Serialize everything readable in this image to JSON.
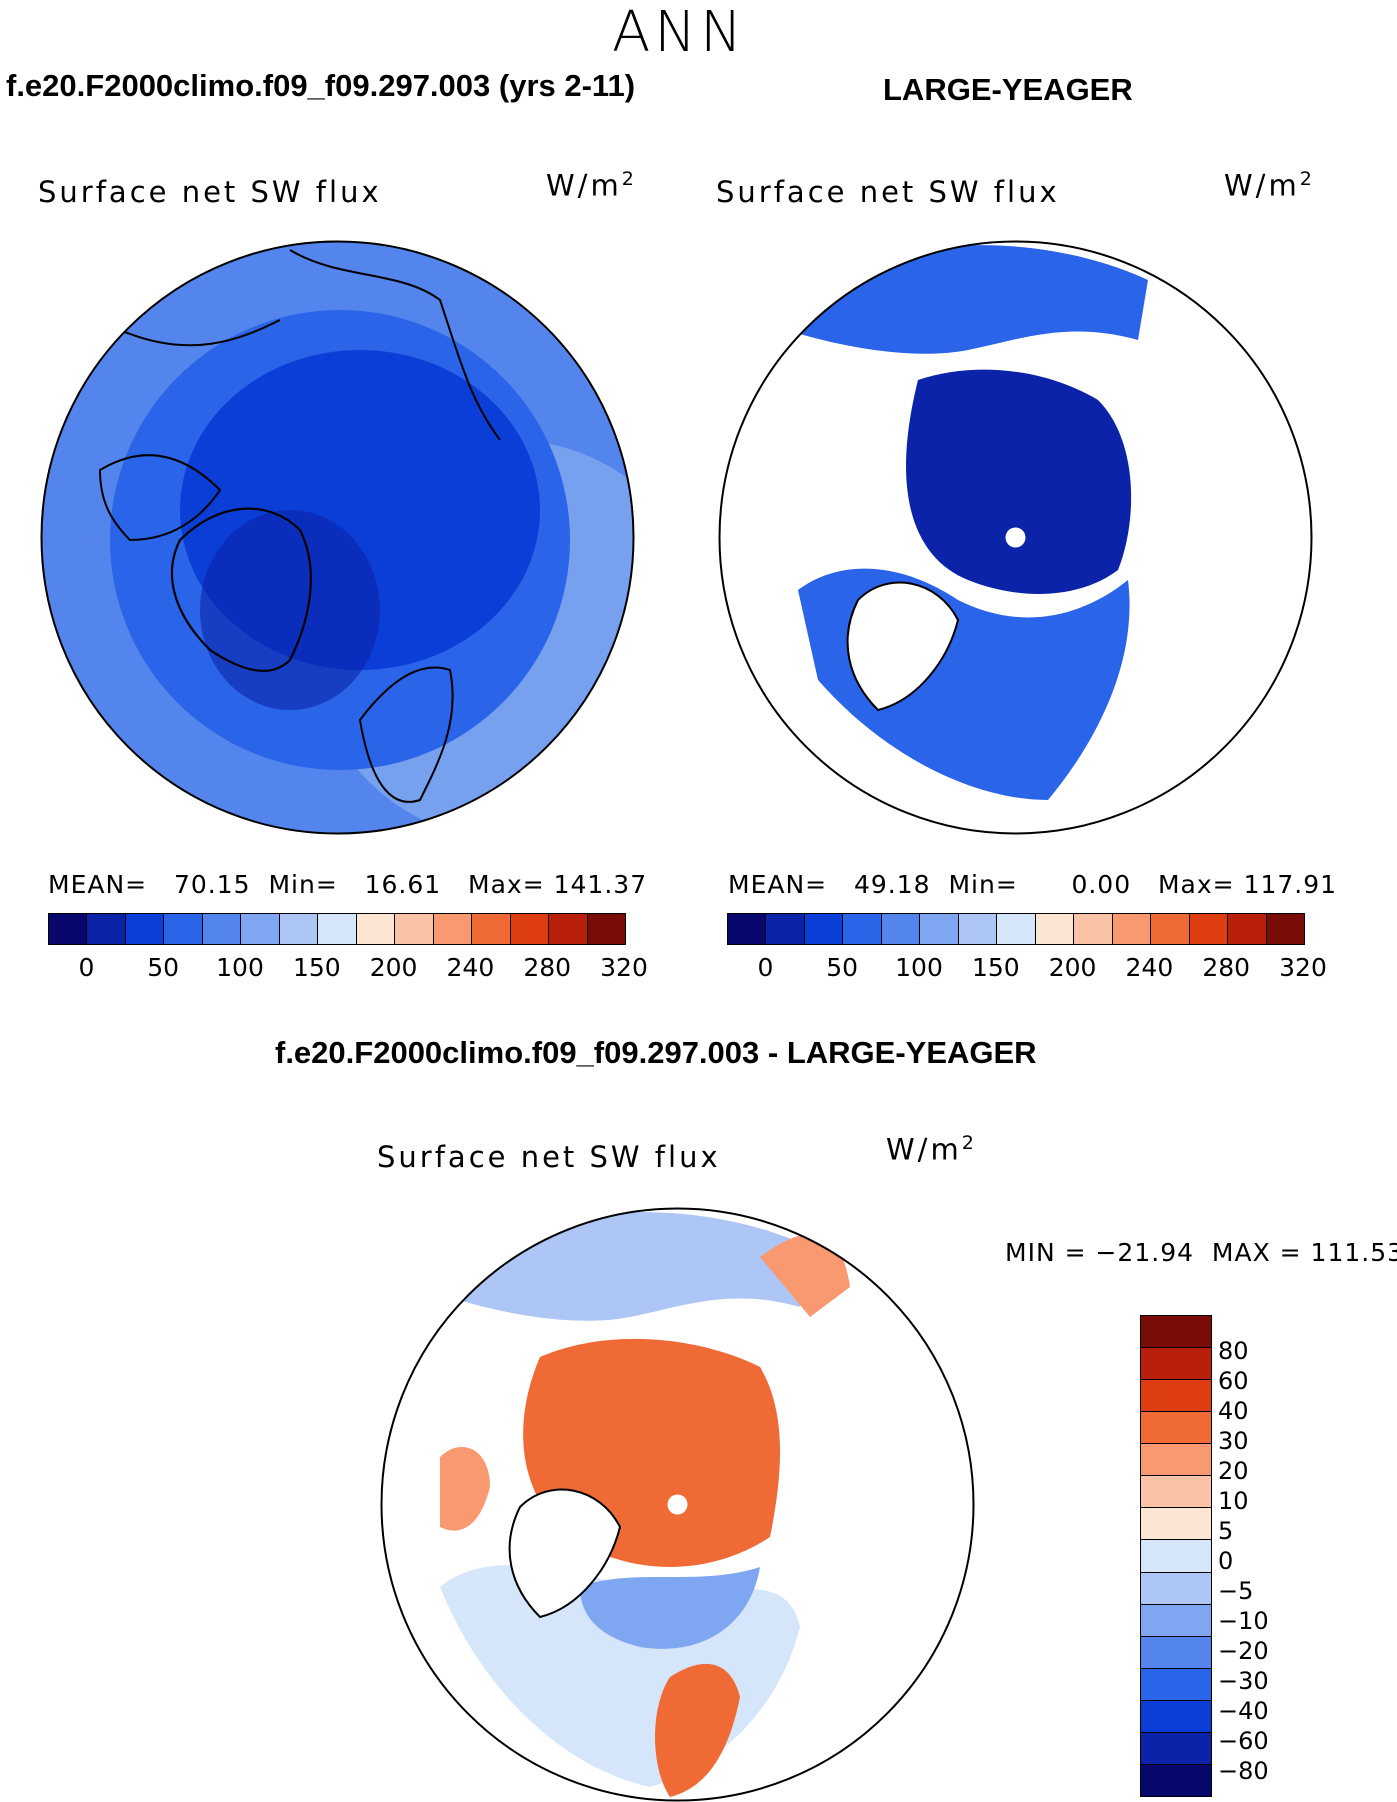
{
  "season": "ANN",
  "panels": {
    "test": {
      "case_title": "f.e20.F2000climo.f09_f09.297.003 (yrs 2-11)",
      "variable": "Surface net SW flux",
      "units_base": "W/m",
      "units_exp": "2",
      "mean_label": "MEAN=",
      "mean_value": "70.15",
      "min_label": "Min=",
      "min_value": "16.61",
      "max_label": "Max=",
      "max_value": "141.37"
    },
    "obs": {
      "case_title": "LARGE-YEAGER",
      "variable": "Surface net SW flux",
      "units_base": "W/m",
      "units_exp": "2",
      "mean_label": "MEAN=",
      "mean_value": "49.18",
      "min_label": "Min=",
      "min_value": "0.00",
      "max_label": "Max=",
      "max_value": "117.91"
    },
    "diff": {
      "case_title": "f.e20.F2000climo.f09_f09.297.003 - LARGE-YEAGER",
      "variable": "Surface net SW flux",
      "units_base": "W/m",
      "units_exp": "2",
      "minmax_text": "MIN = −21.94  MAX = 111.53"
    }
  },
  "colorbar_main": {
    "colors": [
      "#08076d",
      "#0a23a8",
      "#0b3ed6",
      "#2a64e8",
      "#5485ec",
      "#7fa6f0",
      "#adc6f5",
      "#d6e6fa",
      "#fde5d3",
      "#fbc3a6",
      "#f8996f",
      "#f06a36",
      "#dd3d10",
      "#b8200c",
      "#7a0c07"
    ],
    "ticks": [
      "0",
      "50",
      "100",
      "150",
      "200",
      "240",
      "280",
      "320"
    ]
  },
  "colorbar_diff": {
    "colors": [
      "#7a0c07",
      "#b8200c",
      "#dd3d10",
      "#f06a36",
      "#f8996f",
      "#fbc3a6",
      "#fde5d3",
      "#d6e6fa",
      "#adc6f5",
      "#7fa6f0",
      "#5485ec",
      "#2a64e8",
      "#0b3ed6",
      "#0a23a8",
      "#08076d"
    ],
    "ticks": [
      "80",
      "60",
      "40",
      "30",
      "20",
      "10",
      "5",
      "0",
      "−5",
      "−10",
      "−20",
      "−30",
      "−40",
      "−60",
      "−80"
    ]
  },
  "map_colors": {
    "ocean_dark": "#0b3ed6",
    "ocean_mid": "#2a64e8",
    "ocean_light": "#5485ec",
    "ocean_pale": "#7fa6f0",
    "core": "#0a23a8",
    "diff_warm": "#f06a36",
    "diff_warm_light": "#f8996f",
    "diff_cool": "#adc6f5",
    "diff_cool2": "#7fa6f0",
    "diff_pale": "#d6e6fa"
  }
}
